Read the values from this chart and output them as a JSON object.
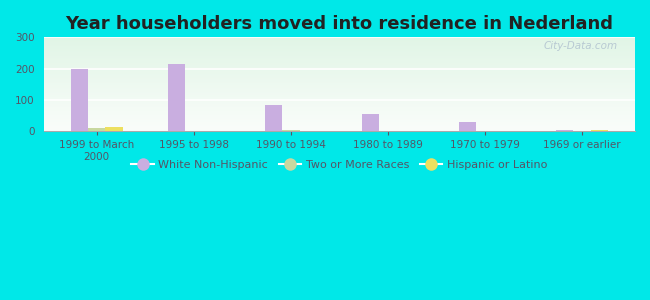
{
  "title": "Year householders moved into residence in Nederland",
  "categories": [
    "1999 to March\n2000",
    "1995 to 1998",
    "1990 to 1994",
    "1980 to 1989",
    "1970 to 1979",
    "1969 or earlier"
  ],
  "series": {
    "White Non-Hispanic": [
      200,
      215,
      83,
      57,
      30,
      5
    ],
    "Two or More Races": [
      10,
      0,
      3,
      0,
      0,
      0
    ],
    "Hispanic or Latino": [
      13,
      0,
      0,
      0,
      0,
      3
    ]
  },
  "colors": {
    "White Non-Hispanic": "#c9aee0",
    "Two or More Races": "#c8d8a0",
    "Hispanic or Latino": "#ede060"
  },
  "ylim": [
    0,
    300
  ],
  "yticks": [
    0,
    100,
    200,
    300
  ],
  "background_color": "#00e8e8",
  "watermark": "City-Data.com",
  "bar_width": 0.18,
  "title_color": "#222222",
  "title_fontsize": 13,
  "tick_color": "#555566",
  "tick_fontsize": 7.5
}
